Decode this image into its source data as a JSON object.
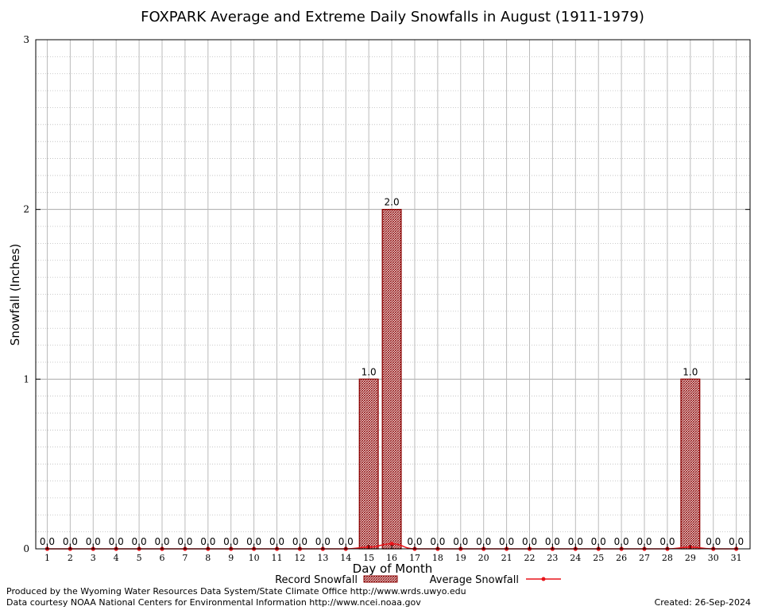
{
  "footer": {
    "produced_by": "Produced by the Wyoming Water Resources Data System/State Climate Office http://www.wrds.uwyo.edu",
    "data_courtesy": "Data courtesy NOAA National Centers for Environmental Information http://www.ncei.noaa.gov",
    "created": "Created:  26-Sep-2024"
  },
  "colors": {
    "record_bar": "#8b0000",
    "average_line": "#e8141a",
    "grid": "#bbbbbb"
  },
  "chart_data": {
    "type": "bar",
    "title": "FOXPARK Average and Extreme Daily Snowfalls in August (1911-1979)",
    "xlabel": "Day of Month",
    "ylabel": "Snowfall (Inches)",
    "ylim": [
      0,
      3
    ],
    "yticks": [
      "0",
      "1",
      "2",
      "3"
    ],
    "grid": true,
    "legend_position": "bottom",
    "categories": [
      "1",
      "2",
      "3",
      "4",
      "5",
      "6",
      "7",
      "8",
      "9",
      "10",
      "11",
      "12",
      "13",
      "14",
      "15",
      "16",
      "17",
      "18",
      "19",
      "20",
      "21",
      "22",
      "23",
      "24",
      "25",
      "26",
      "27",
      "28",
      "29",
      "30",
      "31"
    ],
    "series": [
      {
        "name": "Record Snowfall",
        "kind": "bar",
        "values": [
          0,
          0,
          0,
          0,
          0,
          0,
          0,
          0,
          0,
          0,
          0,
          0,
          0,
          0,
          1.0,
          2.0,
          0,
          0,
          0,
          0,
          0,
          0,
          0,
          0,
          0,
          0,
          0,
          0,
          1.0,
          0,
          0
        ],
        "labels": [
          "0.0",
          "0.0",
          "0.0",
          "0.0",
          "0.0",
          "0.0",
          "0.0",
          "0.0",
          "0.0",
          "0.0",
          "0.0",
          "0.0",
          "0.0",
          "0.0",
          "1.0",
          "2.0",
          "0.0",
          "0.0",
          "0.0",
          "0.0",
          "0.0",
          "0.0",
          "0.0",
          "0.0",
          "0.0",
          "0.0",
          "0.0",
          "0.0",
          "1.0",
          "0.0",
          "0.0"
        ]
      },
      {
        "name": "Average Snowfall",
        "kind": "line",
        "values": [
          0,
          0,
          0,
          0,
          0,
          0,
          0,
          0,
          0,
          0,
          0,
          0,
          0,
          0,
          0.01,
          0.03,
          0,
          0,
          0,
          0,
          0,
          0,
          0,
          0,
          0,
          0,
          0,
          0,
          0.01,
          0,
          0
        ]
      }
    ]
  }
}
